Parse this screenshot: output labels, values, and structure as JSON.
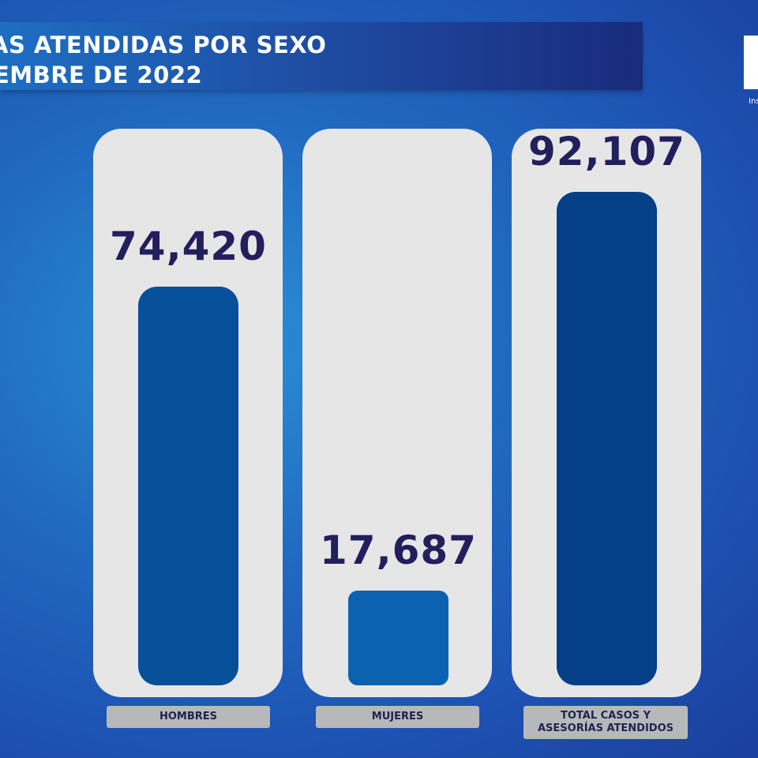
{
  "title": {
    "line1": "AS ATENDIDAS POR SEXO",
    "line2": "EMBRE DE 2022"
  },
  "logo": {
    "text": "Ins"
  },
  "colors": {
    "hombres": "#06509a",
    "mujeres": "#0b62b0",
    "total": "#053f87",
    "value_text": "#221f5c"
  },
  "chart_data": {
    "type": "bar",
    "title": "",
    "categories": [
      "HOMBRES",
      "MUJERES",
      "TOTAL CASOS Y ASESORÍAS ATENDIDOS"
    ],
    "category_lines": [
      [
        "HOMBRES"
      ],
      [
        "MUJERES"
      ],
      [
        "TOTAL CASOS Y",
        "ASESORÍAS ATENDIDOS"
      ]
    ],
    "values": [
      74420,
      17687,
      92107
    ],
    "value_labels": [
      "74,420",
      "17,687",
      "92,107"
    ],
    "ylim": [
      0,
      92107
    ],
    "grid": false,
    "legend": "none"
  }
}
